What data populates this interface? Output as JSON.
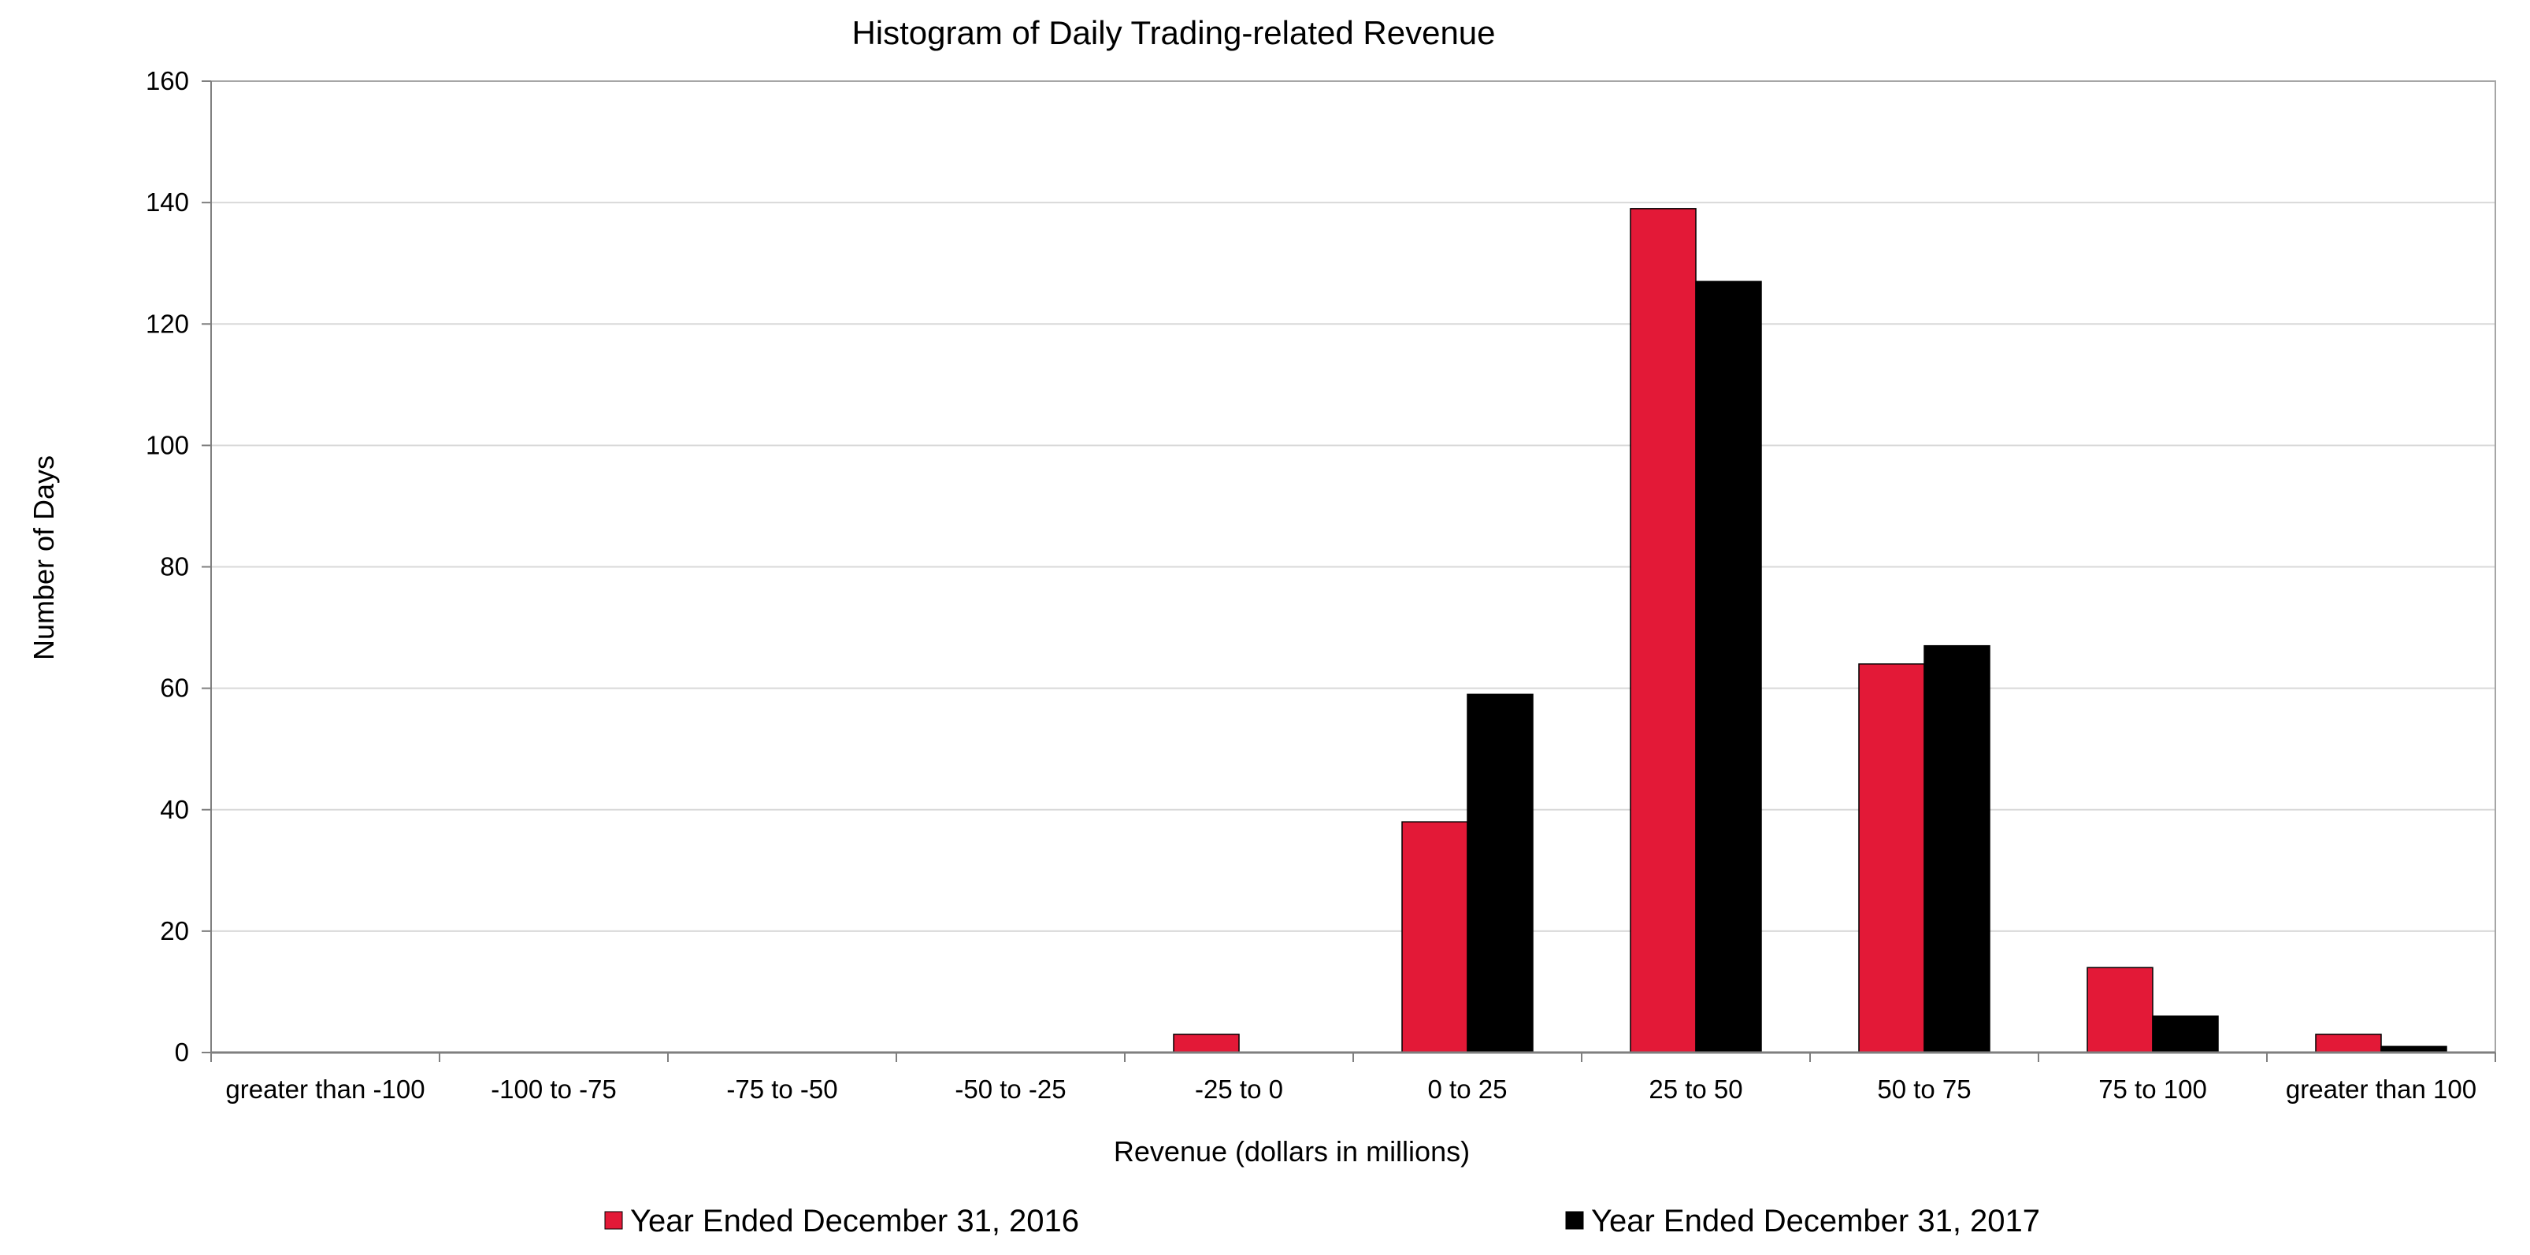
{
  "chart_data": {
    "type": "bar",
    "title": "Histogram of Daily Trading-related Revenue",
    "xlabel": "Revenue (dollars in millions)",
    "ylabel": "Number of Days",
    "categories": [
      "greater than -100",
      "-100 to -75",
      "-75 to -50",
      "-50 to -25",
      "-25 to 0",
      "0 to 25",
      "25 to 50",
      "50 to 75",
      "75 to 100",
      "greater than 100"
    ],
    "series": [
      {
        "name": "Year Ended December 31, 2016",
        "color": "#e31937",
        "values": [
          0,
          0,
          0,
          0,
          3,
          38,
          139,
          64,
          14,
          3
        ]
      },
      {
        "name": "Year Ended December 31, 2017",
        "color": "#000000",
        "values": [
          0,
          0,
          0,
          0,
          0,
          59,
          127,
          67,
          6,
          1
        ]
      }
    ],
    "ylim": [
      0,
      160
    ],
    "yticks": [
      "0",
      "20",
      "40",
      "60",
      "80",
      "100",
      "120",
      "140",
      "160"
    ],
    "grid": true,
    "legend_position": "bottom"
  }
}
